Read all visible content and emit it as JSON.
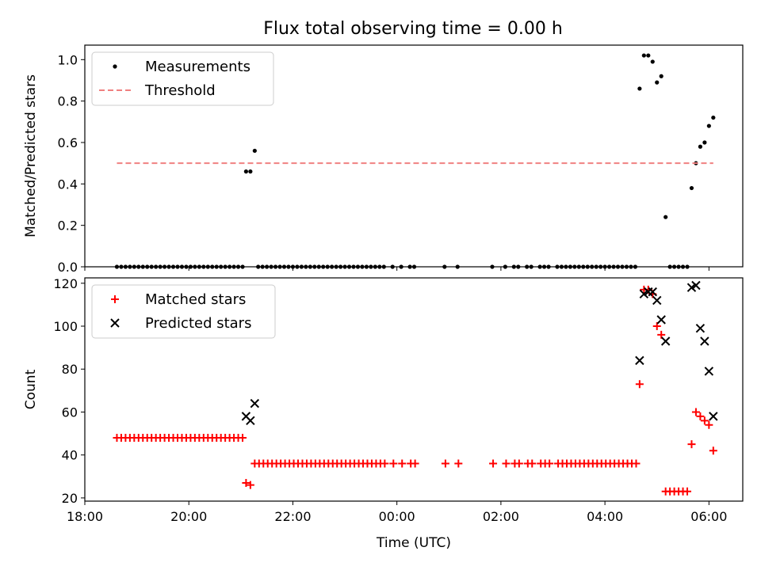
{
  "title": "Flux total observing time = 0.00 h",
  "chart_data": [
    {
      "type": "scatter",
      "title": "Flux total observing time = 0.00 h",
      "xlabel": "",
      "ylabel": "Matched/Predicted stars",
      "x_ticks": [
        "18:00",
        "20:00",
        "22:00",
        "00:00",
        "02:00",
        "04:00",
        "06:00"
      ],
      "y_ticks": [
        "0.0",
        "0.2",
        "0.4",
        "0.6",
        "0.8",
        "1.0"
      ],
      "ylim": [
        0,
        1.07
      ],
      "legend_position": "upper left",
      "series": [
        {
          "name": "Measurements",
          "style": "dot",
          "color": "#000000",
          "points": [
            [
              "18:37",
              0
            ],
            [
              "18:42",
              0
            ],
            [
              "18:47",
              0
            ],
            [
              "18:52",
              0
            ],
            [
              "18:57",
              0
            ],
            [
              "19:02",
              0
            ],
            [
              "19:07",
              0
            ],
            [
              "19:12",
              0
            ],
            [
              "19:17",
              0
            ],
            [
              "19:22",
              0
            ],
            [
              "19:27",
              0
            ],
            [
              "19:32",
              0
            ],
            [
              "19:37",
              0
            ],
            [
              "19:42",
              0
            ],
            [
              "19:47",
              0
            ],
            [
              "19:52",
              0
            ],
            [
              "19:57",
              0
            ],
            [
              "20:02",
              0
            ],
            [
              "20:07",
              0
            ],
            [
              "20:12",
              0
            ],
            [
              "20:17",
              0
            ],
            [
              "20:22",
              0
            ],
            [
              "20:27",
              0
            ],
            [
              "20:32",
              0
            ],
            [
              "20:37",
              0
            ],
            [
              "20:42",
              0
            ],
            [
              "20:47",
              0
            ],
            [
              "20:52",
              0
            ],
            [
              "20:57",
              0
            ],
            [
              "21:02",
              0
            ],
            [
              "21:06",
              0.46
            ],
            [
              "21:11",
              0.46
            ],
            [
              "21:16",
              0.56
            ],
            [
              "21:20",
              0
            ],
            [
              "21:25",
              0
            ],
            [
              "21:30",
              0
            ],
            [
              "21:35",
              0
            ],
            [
              "21:40",
              0
            ],
            [
              "21:45",
              0
            ],
            [
              "21:50",
              0
            ],
            [
              "21:55",
              0
            ],
            [
              "22:00",
              0
            ],
            [
              "22:05",
              0
            ],
            [
              "22:10",
              0
            ],
            [
              "22:15",
              0
            ],
            [
              "22:20",
              0
            ],
            [
              "22:25",
              0
            ],
            [
              "22:30",
              0
            ],
            [
              "22:35",
              0
            ],
            [
              "22:40",
              0
            ],
            [
              "22:45",
              0
            ],
            [
              "22:50",
              0
            ],
            [
              "22:55",
              0
            ],
            [
              "23:00",
              0
            ],
            [
              "23:05",
              0
            ],
            [
              "23:10",
              0
            ],
            [
              "23:15",
              0
            ],
            [
              "23:20",
              0
            ],
            [
              "23:25",
              0
            ],
            [
              "23:30",
              0
            ],
            [
              "23:35",
              0
            ],
            [
              "23:40",
              0
            ],
            [
              "23:45",
              0
            ],
            [
              "23:55",
              0
            ],
            [
              "00:05",
              0
            ],
            [
              "00:15",
              0
            ],
            [
              "00:20",
              0
            ],
            [
              "00:55",
              0
            ],
            [
              "01:10",
              0
            ],
            [
              "01:50",
              0
            ],
            [
              "02:05",
              0
            ],
            [
              "02:15",
              0
            ],
            [
              "02:20",
              0
            ],
            [
              "02:30",
              0
            ],
            [
              "02:35",
              0
            ],
            [
              "02:45",
              0
            ],
            [
              "02:50",
              0
            ],
            [
              "02:55",
              0
            ],
            [
              "03:05",
              0
            ],
            [
              "03:10",
              0
            ],
            [
              "03:15",
              0
            ],
            [
              "03:20",
              0
            ],
            [
              "03:25",
              0
            ],
            [
              "03:30",
              0
            ],
            [
              "03:35",
              0
            ],
            [
              "03:40",
              0
            ],
            [
              "03:45",
              0
            ],
            [
              "03:50",
              0
            ],
            [
              "03:55",
              0
            ],
            [
              "04:00",
              0
            ],
            [
              "04:05",
              0
            ],
            [
              "04:10",
              0
            ],
            [
              "04:15",
              0
            ],
            [
              "04:20",
              0
            ],
            [
              "04:25",
              0
            ],
            [
              "04:30",
              0
            ],
            [
              "04:35",
              0
            ],
            [
              "04:40",
              0.86
            ],
            [
              "04:45",
              1.02
            ],
            [
              "04:50",
              1.02
            ],
            [
              "04:55",
              0.99
            ],
            [
              "05:00",
              0.89
            ],
            [
              "05:05",
              0.92
            ],
            [
              "05:10",
              0.24
            ],
            [
              "05:15",
              0
            ],
            [
              "05:20",
              0
            ],
            [
              "05:25",
              0
            ],
            [
              "05:30",
              0
            ],
            [
              "05:35",
              0
            ],
            [
              "05:40",
              0.38
            ],
            [
              "05:45",
              0.5
            ],
            [
              "05:50",
              0.58
            ],
            [
              "05:55",
              0.6
            ],
            [
              "06:00",
              0.68
            ],
            [
              "06:05",
              0.72
            ]
          ]
        },
        {
          "name": "Threshold",
          "style": "dashed-line",
          "color": "#f08080",
          "points": [
            [
              "18:37",
              0.5
            ],
            [
              "06:05",
              0.5
            ]
          ]
        }
      ]
    },
    {
      "type": "scatter",
      "xlabel": "Time (UTC)",
      "ylabel": "Count",
      "x_ticks": [
        "18:00",
        "20:00",
        "22:00",
        "00:00",
        "02:00",
        "04:00",
        "06:00"
      ],
      "y_ticks": [
        "20",
        "40",
        "60",
        "80",
        "100",
        "120"
      ],
      "ylim": [
        18.5,
        122.5
      ],
      "legend_position": "upper left",
      "series": [
        {
          "name": "Matched stars",
          "marker": "plus",
          "color": "#ff0000",
          "points": [
            [
              "18:37",
              48
            ],
            [
              "18:42",
              48
            ],
            [
              "18:47",
              48
            ],
            [
              "18:52",
              48
            ],
            [
              "18:57",
              48
            ],
            [
              "19:02",
              48
            ],
            [
              "19:07",
              48
            ],
            [
              "19:12",
              48
            ],
            [
              "19:17",
              48
            ],
            [
              "19:22",
              48
            ],
            [
              "19:27",
              48
            ],
            [
              "19:32",
              48
            ],
            [
              "19:37",
              48
            ],
            [
              "19:42",
              48
            ],
            [
              "19:47",
              48
            ],
            [
              "19:52",
              48
            ],
            [
              "19:57",
              48
            ],
            [
              "20:02",
              48
            ],
            [
              "20:07",
              48
            ],
            [
              "20:12",
              48
            ],
            [
              "20:17",
              48
            ],
            [
              "20:22",
              48
            ],
            [
              "20:27",
              48
            ],
            [
              "20:32",
              48
            ],
            [
              "20:37",
              48
            ],
            [
              "20:42",
              48
            ],
            [
              "20:47",
              48
            ],
            [
              "20:52",
              48
            ],
            [
              "20:57",
              48
            ],
            [
              "21:02",
              48
            ],
            [
              "21:06",
              27
            ],
            [
              "21:11",
              26
            ],
            [
              "21:16",
              36
            ],
            [
              "21:21",
              36
            ],
            [
              "21:26",
              36
            ],
            [
              "21:31",
              36
            ],
            [
              "21:36",
              36
            ],
            [
              "21:41",
              36
            ],
            [
              "21:46",
              36
            ],
            [
              "21:51",
              36
            ],
            [
              "21:56",
              36
            ],
            [
              "22:01",
              36
            ],
            [
              "22:06",
              36
            ],
            [
              "22:11",
              36
            ],
            [
              "22:16",
              36
            ],
            [
              "22:21",
              36
            ],
            [
              "22:26",
              36
            ],
            [
              "22:31",
              36
            ],
            [
              "22:36",
              36
            ],
            [
              "22:41",
              36
            ],
            [
              "22:46",
              36
            ],
            [
              "22:51",
              36
            ],
            [
              "22:56",
              36
            ],
            [
              "23:01",
              36
            ],
            [
              "23:06",
              36
            ],
            [
              "23:11",
              36
            ],
            [
              "23:16",
              36
            ],
            [
              "23:21",
              36
            ],
            [
              "23:26",
              36
            ],
            [
              "23:31",
              36
            ],
            [
              "23:36",
              36
            ],
            [
              "23:41",
              36
            ],
            [
              "23:46",
              36
            ],
            [
              "23:56",
              36
            ],
            [
              "00:06",
              36
            ],
            [
              "00:16",
              36
            ],
            [
              "00:21",
              36
            ],
            [
              "00:56",
              36
            ],
            [
              "01:11",
              36
            ],
            [
              "01:51",
              36
            ],
            [
              "02:06",
              36
            ],
            [
              "02:16",
              36
            ],
            [
              "02:21",
              36
            ],
            [
              "02:31",
              36
            ],
            [
              "02:36",
              36
            ],
            [
              "02:46",
              36
            ],
            [
              "02:51",
              36
            ],
            [
              "02:56",
              36
            ],
            [
              "03:06",
              36
            ],
            [
              "03:11",
              36
            ],
            [
              "03:16",
              36
            ],
            [
              "03:21",
              36
            ],
            [
              "03:26",
              36
            ],
            [
              "03:31",
              36
            ],
            [
              "03:36",
              36
            ],
            [
              "03:41",
              36
            ],
            [
              "03:46",
              36
            ],
            [
              "03:51",
              36
            ],
            [
              "03:56",
              36
            ],
            [
              "04:01",
              36
            ],
            [
              "04:06",
              36
            ],
            [
              "04:11",
              36
            ],
            [
              "04:16",
              36
            ],
            [
              "04:21",
              36
            ],
            [
              "04:26",
              36
            ],
            [
              "04:31",
              36
            ],
            [
              "04:36",
              36
            ],
            [
              "04:40",
              73
            ],
            [
              "04:45",
              117
            ],
            [
              "04:50",
              117
            ],
            [
              "04:55",
              115
            ],
            [
              "05:00",
              100
            ],
            [
              "05:05",
              96
            ],
            [
              "05:10",
              23
            ],
            [
              "05:15",
              23
            ],
            [
              "05:20",
              23
            ],
            [
              "05:25",
              23
            ],
            [
              "05:30",
              23
            ],
            [
              "05:35",
              23
            ],
            [
              "05:40",
              45
            ],
            [
              "05:45",
              60
            ],
            [
              "05:50",
              58
            ],
            [
              "05:55",
              56
            ],
            [
              "06:00",
              54
            ],
            [
              "06:05",
              42
            ]
          ]
        },
        {
          "name": "Predicted stars",
          "marker": "x",
          "color": "#000000",
          "points": [
            [
              "21:06",
              58
            ],
            [
              "21:11",
              56
            ],
            [
              "21:16",
              64
            ],
            [
              "04:40",
              84
            ],
            [
              "04:45",
              115
            ],
            [
              "04:50",
              116
            ],
            [
              "04:55",
              116
            ],
            [
              "05:00",
              112
            ],
            [
              "05:05",
              103
            ],
            [
              "05:10",
              93
            ],
            [
              "05:40",
              118
            ],
            [
              "05:45",
              119
            ],
            [
              "05:50",
              99
            ],
            [
              "05:55",
              93
            ],
            [
              "06:00",
              79
            ],
            [
              "06:05",
              58
            ]
          ]
        }
      ]
    }
  ]
}
